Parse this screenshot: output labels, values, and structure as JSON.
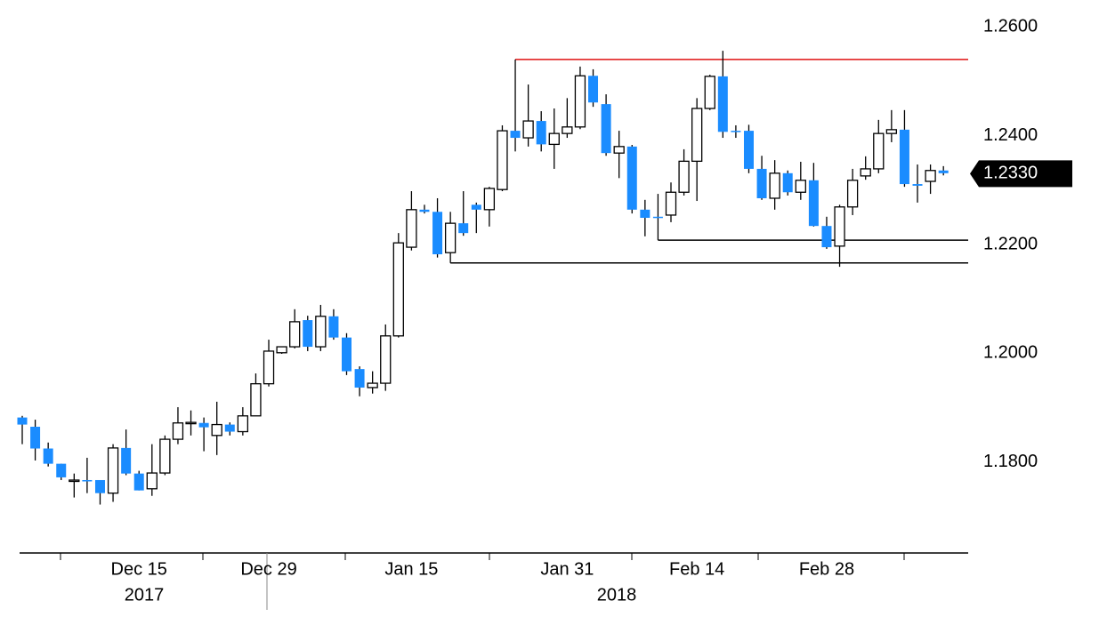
{
  "chart_data": {
    "type": "candlestick",
    "categories": [
      null,
      null,
      null,
      null,
      null,
      null,
      null,
      null,
      null,
      "Dec 15",
      null,
      null,
      null,
      null,
      null,
      null,
      null,
      null,
      null,
      "Dec 29",
      null,
      null,
      null,
      null,
      null,
      null,
      null,
      null,
      null,
      null,
      "Jan 15",
      null,
      null,
      null,
      null,
      null,
      null,
      null,
      null,
      null,
      null,
      null,
      "Jan 31",
      null,
      null,
      null,
      null,
      null,
      null,
      null,
      null,
      null,
      "Feb 14",
      null,
      null,
      null,
      null,
      null,
      null,
      null,
      null,
      null,
      "Feb 28",
      null,
      null,
      null,
      null,
      null,
      null,
      null,
      null,
      null
    ],
    "years": [
      "2017",
      "2018"
    ],
    "ohlc": [
      [
        1.1882,
        1.1885,
        1.1833,
        1.1869
      ],
      [
        1.1865,
        1.1878,
        1.1803,
        1.1825
      ],
      [
        1.1825,
        1.1836,
        1.1792,
        1.1797
      ],
      [
        1.1797,
        1.1797,
        1.1767,
        1.1772
      ],
      [
        1.1767,
        1.1779,
        1.1735,
        1.1767
      ],
      [
        1.1767,
        1.1808,
        1.1743,
        1.1766
      ],
      [
        1.1767,
        1.1767,
        1.1722,
        1.1743
      ],
      [
        1.1743,
        1.1833,
        1.1727,
        1.1826
      ],
      [
        1.1826,
        1.186,
        1.1776,
        1.1779
      ],
      [
        1.1779,
        1.1784,
        1.1748,
        1.1748
      ],
      [
        1.1751,
        1.1833,
        1.1738,
        1.178
      ],
      [
        1.178,
        1.1849,
        1.1776,
        1.1842
      ],
      [
        1.1842,
        1.1901,
        1.1833,
        1.1872
      ],
      [
        1.1872,
        1.1895,
        1.1849,
        1.1873
      ],
      [
        1.1872,
        1.1882,
        1.182,
        1.1864
      ],
      [
        1.1849,
        1.1911,
        1.1813,
        1.1869
      ],
      [
        1.1869,
        1.1873,
        1.1849,
        1.1856
      ],
      [
        1.1856,
        1.1901,
        1.1849,
        1.1885
      ],
      [
        1.1885,
        1.1963,
        1.1885,
        1.1944
      ],
      [
        1.1944,
        1.2025,
        1.1939,
        1.2004
      ],
      [
        1.2001,
        1.2012,
        1.1999,
        1.2012
      ],
      [
        1.2012,
        1.2081,
        1.2009,
        1.2058
      ],
      [
        1.2061,
        1.2069,
        1.2004,
        1.2012
      ],
      [
        1.2012,
        1.2089,
        1.2004,
        1.2068
      ],
      [
        1.2068,
        1.2081,
        1.2025,
        1.2029
      ],
      [
        1.2029,
        1.2037,
        1.196,
        1.1967
      ],
      [
        1.1971,
        1.1976,
        1.1921,
        1.1937
      ],
      [
        1.1937,
        1.1967,
        1.1926,
        1.1945
      ],
      [
        1.1945,
        1.2053,
        1.1931,
        1.2032
      ],
      [
        1.2032,
        1.2221,
        1.2029,
        1.2203
      ],
      [
        1.2195,
        1.2298,
        1.2189,
        1.2264
      ],
      [
        1.2264,
        1.2273,
        1.2257,
        1.226
      ],
      [
        1.226,
        1.2285,
        1.2176,
        1.2182
      ],
      [
        1.2185,
        1.226,
        1.2166,
        1.2239
      ],
      [
        1.2239,
        1.2298,
        1.2216,
        1.2221
      ],
      [
        1.2273,
        1.2277,
        1.2221,
        1.2264
      ],
      [
        1.2264,
        1.2306,
        1.2233,
        1.2303
      ],
      [
        1.2301,
        1.2419,
        1.2298,
        1.2409
      ],
      [
        1.2409,
        1.254,
        1.2371,
        1.2396
      ],
      [
        1.2396,
        1.2494,
        1.238,
        1.2427
      ],
      [
        1.2427,
        1.2445,
        1.2371,
        1.2384
      ],
      [
        1.2384,
        1.245,
        1.2339,
        1.2404
      ],
      [
        1.2404,
        1.2469,
        1.2396,
        1.2416
      ],
      [
        1.2416,
        1.2527,
        1.2412,
        1.251
      ],
      [
        1.251,
        1.2522,
        1.2453,
        1.2461
      ],
      [
        1.2458,
        1.2476,
        1.2363,
        1.2368
      ],
      [
        1.2368,
        1.2409,
        1.2322,
        1.238
      ],
      [
        1.238,
        1.2383,
        1.2257,
        1.2264
      ],
      [
        1.2264,
        1.2282,
        1.2215,
        1.2249
      ],
      [
        1.2251,
        1.2293,
        1.2208,
        1.225
      ],
      [
        1.2254,
        1.2314,
        1.2241,
        1.2296
      ],
      [
        1.2296,
        1.2375,
        1.229,
        1.2353
      ],
      [
        1.2353,
        1.2469,
        1.228,
        1.245
      ],
      [
        1.245,
        1.2512,
        1.2447,
        1.2509
      ],
      [
        1.2509,
        1.2556,
        1.2396,
        1.2407
      ],
      [
        1.2409,
        1.2419,
        1.2396,
        1.2407
      ],
      [
        1.2409,
        1.242,
        1.2331,
        1.2339
      ],
      [
        1.2339,
        1.2363,
        1.2282,
        1.2285
      ],
      [
        1.2285,
        1.2355,
        1.2264,
        1.2331
      ],
      [
        1.2331,
        1.2336,
        1.229,
        1.2296
      ],
      [
        1.2296,
        1.2352,
        1.2282,
        1.2318
      ],
      [
        1.2318,
        1.235,
        1.2233,
        1.2234
      ],
      [
        1.2234,
        1.2251,
        1.2192,
        1.2195
      ],
      [
        1.2197,
        1.2273,
        1.2159,
        1.2269
      ],
      [
        1.2269,
        1.2339,
        1.2254,
        1.2318
      ],
      [
        1.2326,
        1.2362,
        1.2319,
        1.2339
      ],
      [
        1.2339,
        1.2429,
        1.2331,
        1.2404
      ],
      [
        1.2404,
        1.2447,
        1.2388,
        1.2411
      ],
      [
        1.2411,
        1.2447,
        1.2306,
        1.2311
      ],
      [
        1.2311,
        1.2347,
        1.2277,
        1.2308
      ],
      [
        1.2316,
        1.2347,
        1.2293,
        1.2336
      ],
      [
        1.2336,
        1.2344,
        1.2327,
        1.2331
      ]
    ],
    "up_color": "#ffffff",
    "down_color": "#1a8cff",
    "levels": [
      {
        "value": 1.254,
        "start": 38,
        "color": "#e01010"
      },
      {
        "value": 1.2208,
        "start": 49,
        "color": "#000000"
      },
      {
        "value": 1.2166,
        "start": 33,
        "color": "#000000"
      }
    ],
    "last_price": {
      "value": 1.233,
      "label": "1.2330"
    },
    "ylim": [
      1.1633,
      1.2633
    ],
    "yticks": [
      {
        "value": 1.26,
        "label": "1.2600"
      },
      {
        "value": 1.24,
        "label": "1.2400"
      },
      {
        "value": 1.22,
        "label": "1.2200"
      },
      {
        "value": 1.2,
        "label": "1.2000"
      },
      {
        "value": 1.18,
        "label": "1.1800"
      }
    ],
    "grid": false
  }
}
